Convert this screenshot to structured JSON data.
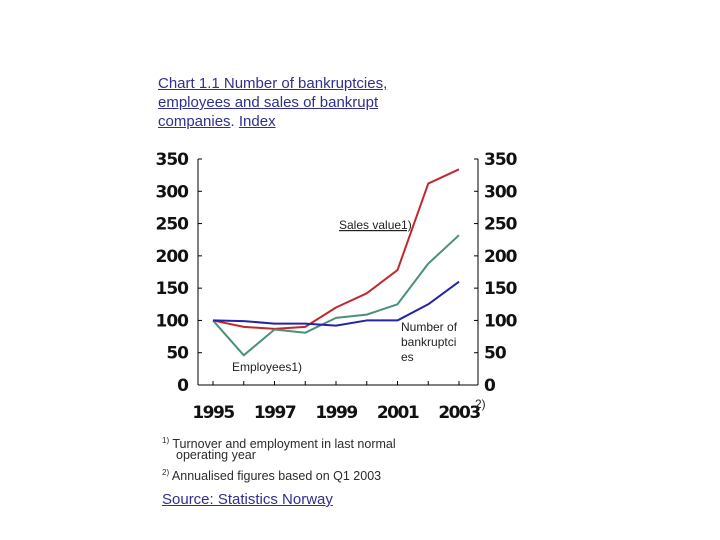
{
  "title": {
    "line1": "Chart 1.1 Number of bankruptcies,",
    "line2": "employees and sales of bankrupt",
    "line3_a": "companies",
    "line3_b": ". ",
    "line3_c": "Index"
  },
  "chart_data": {
    "type": "line",
    "title": "Chart 1.1 Number of bankruptcies, employees and sales of bankrupt companies. Index",
    "x": [
      1995,
      1996,
      1997,
      1998,
      1999,
      2000,
      2001,
      2002,
      2003
    ],
    "x_tick_labels": [
      "1995",
      "1997",
      "1999",
      "2001",
      "2003"
    ],
    "x_tick_values": [
      1995,
      1997,
      1999,
      2001,
      2003
    ],
    "x_tick_suffix": "2)",
    "ylim": [
      0,
      350
    ],
    "y_ticks": [
      0,
      50,
      100,
      150,
      200,
      250,
      300,
      350
    ],
    "grid": false,
    "series": [
      {
        "name": "Sales value1)",
        "color": "#c0282d",
        "values": [
          100,
          90,
          87,
          90,
          120,
          142,
          178,
          312,
          334
        ]
      },
      {
        "name": "Employees1)",
        "color": "#4a9178",
        "values": [
          100,
          46,
          86,
          81,
          104,
          109,
          125,
          188,
          232
        ]
      },
      {
        "name": "Number of bankruptcies",
        "color": "#2424a6",
        "values": [
          100,
          99,
          95,
          95,
          92,
          100,
          100,
          125,
          160
        ]
      }
    ],
    "labels": {
      "sales": "Sales value1)",
      "employees": "Employees1)",
      "bankruptcies_1": "Number of",
      "bankruptcies_2": "bankruptci",
      "bankruptcies_3": "es"
    }
  },
  "footnotes": {
    "n1_mark": "1)",
    "n1_line1": "Turnover and employment in last normal",
    "n1_line2": "operating year",
    "n2_mark": "2)",
    "n2_text": "Annualised figures based on Q1 2003"
  },
  "source": "Source: Statistics Norway"
}
